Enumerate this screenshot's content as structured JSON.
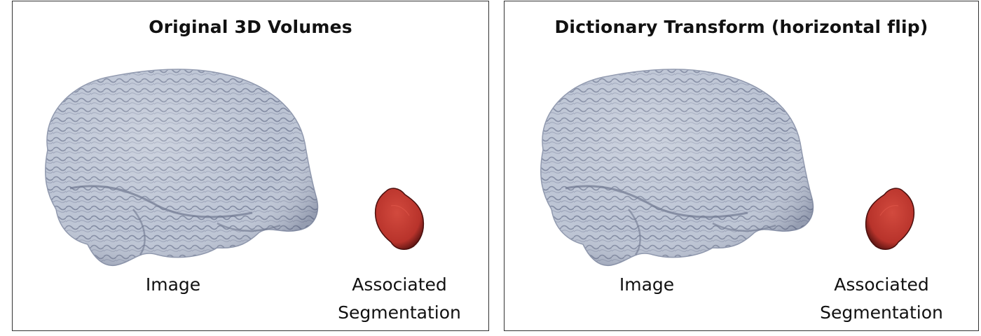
{
  "panels": [
    {
      "title": "Original 3D Volumes",
      "image_caption": "Image",
      "segmentation_caption": [
        "Associated",
        "Segmentation"
      ]
    },
    {
      "title": "Dictionary Transform (horizontal flip)",
      "image_caption": "Image",
      "segmentation_caption": [
        "Associated",
        "Segmentation"
      ]
    }
  ],
  "colors": {
    "brain": "#b8c0d0",
    "brain_shadow": "#6f7890",
    "segmentation": "#b8332b",
    "segmentation_shadow": "#5a1412"
  }
}
